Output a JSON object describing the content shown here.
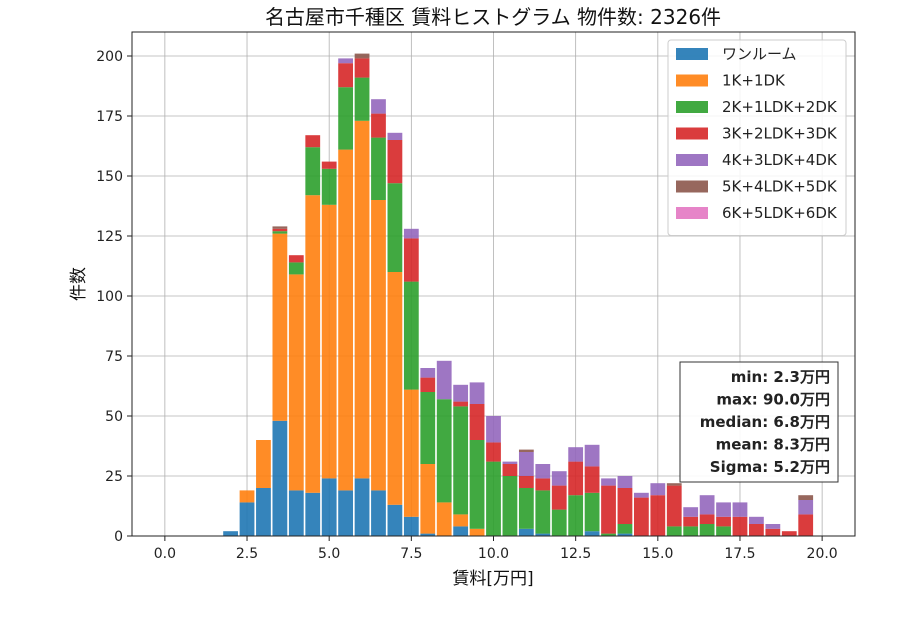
{
  "chart_data": {
    "type": "bar",
    "stacked": true,
    "title": "名古屋市千種区 賃料ヒストグラム 物件数: 2326件",
    "xlabel": "賃料[万円]",
    "ylabel": "件数",
    "xlim": [
      -1.0,
      21.0
    ],
    "ylim": [
      0,
      210
    ],
    "x_ticks": [
      0.0,
      2.5,
      5.0,
      7.5,
      10.0,
      12.5,
      15.0,
      17.5,
      20.0
    ],
    "x_tick_labels": [
      "0.0",
      "2.5",
      "5.0",
      "7.5",
      "10.0",
      "12.5",
      "15.0",
      "17.5",
      "20.0"
    ],
    "y_ticks": [
      0,
      25,
      50,
      75,
      100,
      125,
      150,
      175,
      200
    ],
    "y_tick_labels": [
      "0",
      "25",
      "50",
      "75",
      "100",
      "125",
      "150",
      "175",
      "200"
    ],
    "grid": true,
    "legend_position": "top-right",
    "bin_width": 0.5,
    "x": [
      2.0,
      2.5,
      3.0,
      3.5,
      4.0,
      4.5,
      5.0,
      5.5,
      6.0,
      6.5,
      7.0,
      7.5,
      8.0,
      8.5,
      9.0,
      9.5,
      10.0,
      10.5,
      11.0,
      11.5,
      12.0,
      12.5,
      13.0,
      13.5,
      14.0,
      14.5,
      15.0,
      15.5,
      16.0,
      16.5,
      17.0,
      17.5,
      18.0,
      18.5,
      19.0,
      19.5
    ],
    "series": [
      {
        "name": "ワンルーム",
        "color": "#1f77b4",
        "values": [
          2,
          14,
          20,
          48,
          19,
          18,
          24,
          19,
          24,
          19,
          13,
          8,
          1,
          0,
          4,
          0,
          0,
          0,
          3,
          1,
          0,
          0,
          2,
          0,
          1,
          0,
          0,
          0,
          0,
          0,
          0,
          0,
          0,
          0,
          0,
          0
        ]
      },
      {
        "name": "1K+1DK",
        "color": "#ff7f0e",
        "values": [
          0,
          5,
          20,
          78,
          90,
          124,
          114,
          142,
          149,
          121,
          97,
          53,
          29,
          14,
          5,
          3,
          0,
          0,
          0,
          0,
          0,
          0,
          0,
          0,
          0,
          0,
          0,
          0,
          0,
          0,
          0,
          0,
          0,
          0,
          0,
          0
        ]
      },
      {
        "name": "2K+1LDK+2DK",
        "color": "#2ca02c",
        "values": [
          0,
          0,
          0,
          1,
          5,
          20,
          15,
          26,
          18,
          26,
          37,
          45,
          30,
          43,
          45,
          37,
          31,
          25,
          17,
          18,
          11,
          17,
          16,
          1,
          4,
          0,
          0,
          4,
          4,
          5,
          4,
          0,
          0,
          0,
          0,
          0
        ]
      },
      {
        "name": "3K+2LDK+3DK",
        "color": "#d62728",
        "values": [
          0,
          0,
          0,
          1,
          3,
          5,
          3,
          10,
          8,
          10,
          18,
          18,
          6,
          0,
          2,
          15,
          8,
          5,
          5,
          5,
          10,
          14,
          11,
          20,
          15,
          16,
          17,
          17,
          4,
          4,
          4,
          8,
          5,
          3,
          2,
          9
        ]
      },
      {
        "name": "4K+3LDK+4DK",
        "color": "#9467bd",
        "values": [
          0,
          0,
          0,
          0,
          0,
          0,
          0,
          2,
          0,
          6,
          3,
          4,
          4,
          16,
          7,
          9,
          11,
          1,
          10,
          6,
          6,
          6,
          9,
          3,
          5,
          2,
          5,
          0,
          4,
          8,
          6,
          6,
          3,
          2,
          0,
          6
        ]
      },
      {
        "name": "5K+4LDK+5DK",
        "color": "#8c564b",
        "values": [
          0,
          0,
          0,
          1,
          0,
          0,
          0,
          0,
          2,
          0,
          0,
          0,
          0,
          0,
          0,
          0,
          0,
          0,
          1,
          0,
          0,
          0,
          0,
          0,
          0,
          0,
          0,
          1,
          0,
          0,
          0,
          0,
          0,
          0,
          0,
          2
        ]
      },
      {
        "name": "6K+5LDK+6DK",
        "color": "#e377c2",
        "values": [
          0,
          0,
          0,
          0,
          0,
          0,
          0,
          0,
          0,
          0,
          0,
          0,
          0,
          0,
          0,
          0,
          0,
          0,
          0,
          0,
          0,
          0,
          0,
          0,
          0,
          0,
          0,
          0,
          0,
          0,
          0,
          0,
          0,
          0,
          0,
          0
        ]
      }
    ],
    "stats_box": [
      "min: 2.3万円",
      "max: 90.0万円",
      "median: 6.8万円",
      "mean: 8.3万円",
      "Sigma: 5.2万円"
    ]
  }
}
